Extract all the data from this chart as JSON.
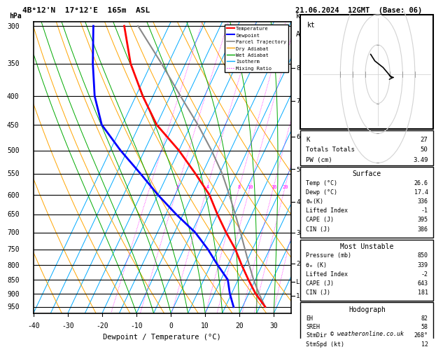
{
  "title_left": "4B°12'N  17°12'E  165m  ASL",
  "title_right": "21.06.2024  12GMT  (Base: 06)",
  "xlabel": "Dewpoint / Temperature (°C)",
  "ylabel_left": "hPa",
  "bg_color": "#ffffff",
  "pmin": 295,
  "pmax": 975,
  "temp_min": -40,
  "temp_max": 35,
  "pressure_ticks": [
    300,
    350,
    400,
    450,
    500,
    550,
    600,
    650,
    700,
    750,
    800,
    850,
    900,
    950
  ],
  "temp_ticks": [
    -40,
    -30,
    -20,
    -10,
    0,
    10,
    20,
    30
  ],
  "isotherm_temps": [
    -40,
    -35,
    -30,
    -25,
    -20,
    -15,
    -10,
    -5,
    0,
    5,
    10,
    15,
    20,
    25,
    30,
    35
  ],
  "dry_adiabat_t0s": [
    -30,
    -20,
    -10,
    0,
    10,
    20,
    30,
    40,
    50,
    60,
    70
  ],
  "wet_adiabat_t0s": [
    -10,
    -5,
    0,
    5,
    10,
    15,
    20,
    25,
    30
  ],
  "mixing_ratios": [
    1,
    2,
    4,
    8,
    10,
    16,
    20,
    28
  ],
  "mixing_ratio_label_p": 580,
  "skew_factor": 40,
  "temp_profile_temp": [
    26.6,
    22.0,
    18.0,
    14.0,
    10.0,
    5.0,
    0.0,
    -5.0,
    -12.0,
    -20.0,
    -30.0,
    -38.0,
    -46.0,
    -53.0
  ],
  "temp_profile_pres": [
    950,
    900,
    850,
    800,
    750,
    700,
    650,
    600,
    550,
    500,
    450,
    400,
    350,
    300
  ],
  "dewp_profile_temp": [
    17.4,
    14.5,
    12.0,
    7.0,
    2.0,
    -4.0,
    -12.0,
    -20.0,
    -28.0,
    -37.0,
    -46.0,
    -52.0,
    -57.0,
    -62.0
  ],
  "dewp_profile_pres": [
    950,
    900,
    850,
    800,
    750,
    700,
    650,
    600,
    550,
    500,
    450,
    400,
    350,
    300
  ],
  "parcel_temp": [
    26.6,
    23.0,
    19.5,
    16.2,
    12.8,
    9.2,
    5.2,
    0.8,
    -4.2,
    -10.5,
    -18.0,
    -27.0,
    -37.0,
    -49.0
  ],
  "parcel_pres": [
    950,
    900,
    850,
    800,
    750,
    700,
    650,
    600,
    550,
    500,
    450,
    400,
    350,
    300
  ],
  "temp_color": "#ff0000",
  "dewp_color": "#0000ff",
  "parcel_color": "#888888",
  "isotherm_color": "#00aaff",
  "dry_adiabat_color": "#ffa500",
  "wet_adiabat_color": "#00aa00",
  "mixing_ratio_color": "#ff00ff",
  "km_ticks": [
    1,
    2,
    3,
    4,
    5,
    6,
    7,
    8
  ],
  "km_pressures": [
    907,
    795,
    701,
    617,
    540,
    472,
    408,
    356
  ],
  "lcl_pressure": 858,
  "lcl_label": "LCL",
  "wind_barb_pressures": [
    950,
    900,
    850,
    800,
    750,
    700,
    650,
    600,
    550,
    500,
    450,
    400,
    350,
    300
  ],
  "info_K": 27,
  "info_TT": 50,
  "info_PW": 3.49,
  "surface_temp": 26.6,
  "surface_dewp": 17.4,
  "surface_theta_e": 336,
  "surface_LI": -1,
  "surface_CAPE": 395,
  "surface_CIN": 386,
  "mu_pressure": 850,
  "mu_theta_e": 339,
  "mu_LI": -2,
  "mu_CAPE": 643,
  "mu_CIN": 181,
  "hodo_EH": 82,
  "hodo_SREH": 58,
  "hodo_StmDir": 268,
  "hodo_StmSpd": 12,
  "copyright": "© weatheronline.co.uk"
}
